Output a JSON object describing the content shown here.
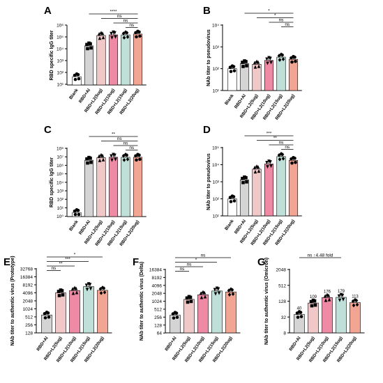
{
  "colors": {
    "blank": "#ffffff",
    "rbd_al": "#d4d4d4",
    "l2_5": "#f1c8c8",
    "l2_10": "#ee8aa4",
    "l2_15": "#bfe0d8",
    "l2_20": "#f2a592",
    "stroke": "#000000"
  },
  "chart_data": [
    {
      "panel": "A",
      "type": "bar",
      "scale": "log",
      "ylabel": "RBD specific IgG titer",
      "ylim": [
        10,
        1000000
      ],
      "ytick_labels": [
        "10⁶",
        "10⁵",
        "10⁴",
        "10³",
        "10²",
        "10¹"
      ],
      "categories": [
        "Blank",
        "RBD+Al",
        "RBD+L2(5ug)",
        "RBD+L2(10ug)",
        "RBD+L2(15ug)",
        "RBD+L2(20ug)"
      ],
      "values": [
        50,
        20000,
        150000,
        170000,
        170000,
        200000
      ],
      "significance": [
        {
          "from": 1,
          "to": 5,
          "label": "****"
        },
        {
          "from": 2,
          "to": 5,
          "label": "ns"
        },
        {
          "from": 3,
          "to": 5,
          "label": "ns"
        },
        {
          "from": 4,
          "to": 5,
          "label": "ns"
        }
      ]
    },
    {
      "panel": "B",
      "type": "bar",
      "scale": "log",
      "ylabel": "NAb titer to pseudovirus",
      "ylim": [
        10,
        10000
      ],
      "ytick_labels": [
        "10⁴",
        "10³",
        "10²",
        "10¹"
      ],
      "categories": [
        "Blank",
        "RBD+Al",
        "RBD+L2(5ug)",
        "RBD+L2(10ug)",
        "RBD+L2(15ug)",
        "RBD+L2(20ug)"
      ],
      "values": [
        100,
        170,
        160,
        240,
        340,
        270
      ],
      "significance": [
        {
          "from": 1,
          "to": 5,
          "label": "*"
        },
        {
          "from": 2,
          "to": 5,
          "label": "*"
        },
        {
          "from": 3,
          "to": 5,
          "label": "ns"
        },
        {
          "from": 4,
          "to": 5,
          "label": "ns"
        }
      ]
    },
    {
      "panel": "C",
      "type": "bar",
      "scale": "log",
      "ylabel": "RBD specific IgG titer",
      "ylim": [
        1,
        100000000
      ],
      "ytick_labels": [
        "10⁸",
        "10⁷",
        "10⁶",
        "10⁵",
        "10⁴",
        "10³",
        "10²",
        "10¹",
        "10⁰"
      ],
      "categories": [
        "Blank",
        "RBD+Al",
        "RBD+L2(5ug)",
        "RBD+L2(10ug)",
        "RBD+L2(15ug)",
        "RBD+L2(20ug)"
      ],
      "values": [
        3,
        4000000,
        8000000,
        9000000,
        9000000,
        9000000
      ],
      "significance": [
        {
          "from": 1,
          "to": 5,
          "label": "**"
        },
        {
          "from": 2,
          "to": 5,
          "label": "ns"
        },
        {
          "from": 3,
          "to": 5,
          "label": "ns"
        },
        {
          "from": 4,
          "to": 5,
          "label": "ns"
        }
      ]
    },
    {
      "panel": "D",
      "type": "bar",
      "scale": "log",
      "ylabel": "NAb titer to pseudovirus",
      "ylim": [
        10,
        100000
      ],
      "ytick_labels": [
        "10⁵",
        "10⁴",
        "10³",
        "10²",
        "10¹"
      ],
      "categories": [
        "Blank",
        "RBD+Al",
        "RBD+L2(5ug)",
        "RBD+L2(10ug)",
        "RBD+L2(15ug)",
        "RBD+L2(20ug)"
      ],
      "values": [
        100,
        1300,
        5500,
        11000,
        30000,
        18000
      ],
      "significance": [
        {
          "from": 1,
          "to": 5,
          "label": "***"
        },
        {
          "from": 2,
          "to": 5,
          "label": "**"
        },
        {
          "from": 3,
          "to": 5,
          "label": "ns"
        },
        {
          "from": 4,
          "to": 5,
          "label": "ns"
        }
      ]
    },
    {
      "panel": "E",
      "type": "bar",
      "scale": "log2",
      "ylabel": "NAb titer to authentic virus (Prototype)",
      "ylim": [
        128,
        32768
      ],
      "ytick_labels": [
        "32768",
        "16384",
        "8192",
        "4096",
        "2048",
        "1024",
        "512",
        "256",
        "128"
      ],
      "categories": [
        "RBD+Al",
        "RBD+L2(5ug)",
        "RBD+L2(10ug)",
        "RBD+L2(15ug)",
        "RBD+L2(20ug)"
      ],
      "values": [
        600,
        4100,
        5000,
        7000,
        5100
      ],
      "significance": [
        {
          "from": 0,
          "to": 4,
          "label": "*"
        },
        {
          "from": 0,
          "to": 3,
          "label": "***"
        },
        {
          "from": 0,
          "to": 2,
          "label": "**"
        },
        {
          "from": 0,
          "to": 1,
          "label": "ns"
        }
      ]
    },
    {
      "panel": "F",
      "type": "bar",
      "scale": "log2",
      "ylabel": "NAb titer to authentic virus (Delta)",
      "ylim": [
        64,
        16384
      ],
      "ytick_labels": [
        "16384",
        "8192",
        "4096",
        "2048",
        "1024",
        "512",
        "256",
        "128",
        "64"
      ],
      "categories": [
        "RBD+Al",
        "RBD+L2(5ug)",
        "RBD+L2(10ug)",
        "RBD+L2(15ug)",
        "RBD+L2(20ug)"
      ],
      "values": [
        300,
        1200,
        1800,
        2500,
        2300
      ],
      "significance": [
        {
          "from": 0,
          "to": 4,
          "label": "ns"
        },
        {
          "from": 0,
          "to": 3,
          "label": "*"
        },
        {
          "from": 0,
          "to": 2,
          "label": "ns"
        },
        {
          "from": 0,
          "to": 1,
          "label": "ns"
        }
      ]
    },
    {
      "panel": "G",
      "type": "bar",
      "scale": "log2",
      "ylabel": "NAb titer to authentic virus (Omicron)",
      "ylim": [
        8,
        2048
      ],
      "ytick_labels": [
        "2048",
        "512",
        "128",
        "32",
        "8"
      ],
      "ytick_values": [
        2048,
        512,
        128,
        32,
        8
      ],
      "categories": [
        "RBD+Al",
        "RBD+L2(5ug)",
        "RBD+L2(10ug)",
        "RBD+L2(15ug)",
        "RBD+L2(20ug)"
      ],
      "values": [
        40,
        109,
        176,
        179,
        113
      ],
      "bar_value_labels": [
        "40",
        "109",
        "176",
        "179",
        "113"
      ],
      "significance": [
        {
          "from": 0,
          "to": 3,
          "label": "ns ↑4.48 fold"
        }
      ]
    }
  ]
}
